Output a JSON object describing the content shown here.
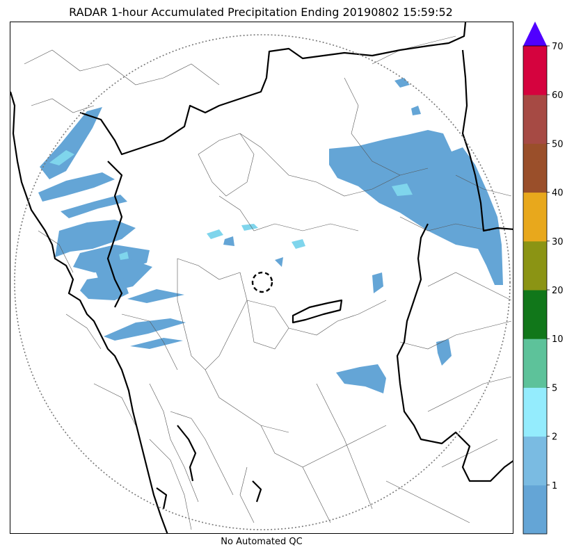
{
  "title": "RADAR 1-hour Accumulated Precipitation Ending 20190802 15:59:52",
  "footer": "No Automated QC",
  "colorbar": {
    "levels": [
      {
        "color": "#64a5d6"
      },
      {
        "color": "#7abbe2",
        "label": "1"
      },
      {
        "color": "#94ecfd",
        "label": "2"
      },
      {
        "color": "#5dc29a",
        "label": "5"
      },
      {
        "color": "#11771a",
        "label": "10"
      },
      {
        "color": "#8b9414",
        "label": "20"
      },
      {
        "color": "#e8a81c",
        "label": "30"
      },
      {
        "color": "#9a4f2a",
        "label": "40"
      },
      {
        "color": "#a64a44",
        "label": "50"
      },
      {
        "color": "#d5033e",
        "label": "60"
      }
    ],
    "top_label": "70",
    "overflow_color": "#5000ff"
  },
  "legend": {
    "radar_range_ring": "dotted circle",
    "radar_site": "dashed circle"
  }
}
